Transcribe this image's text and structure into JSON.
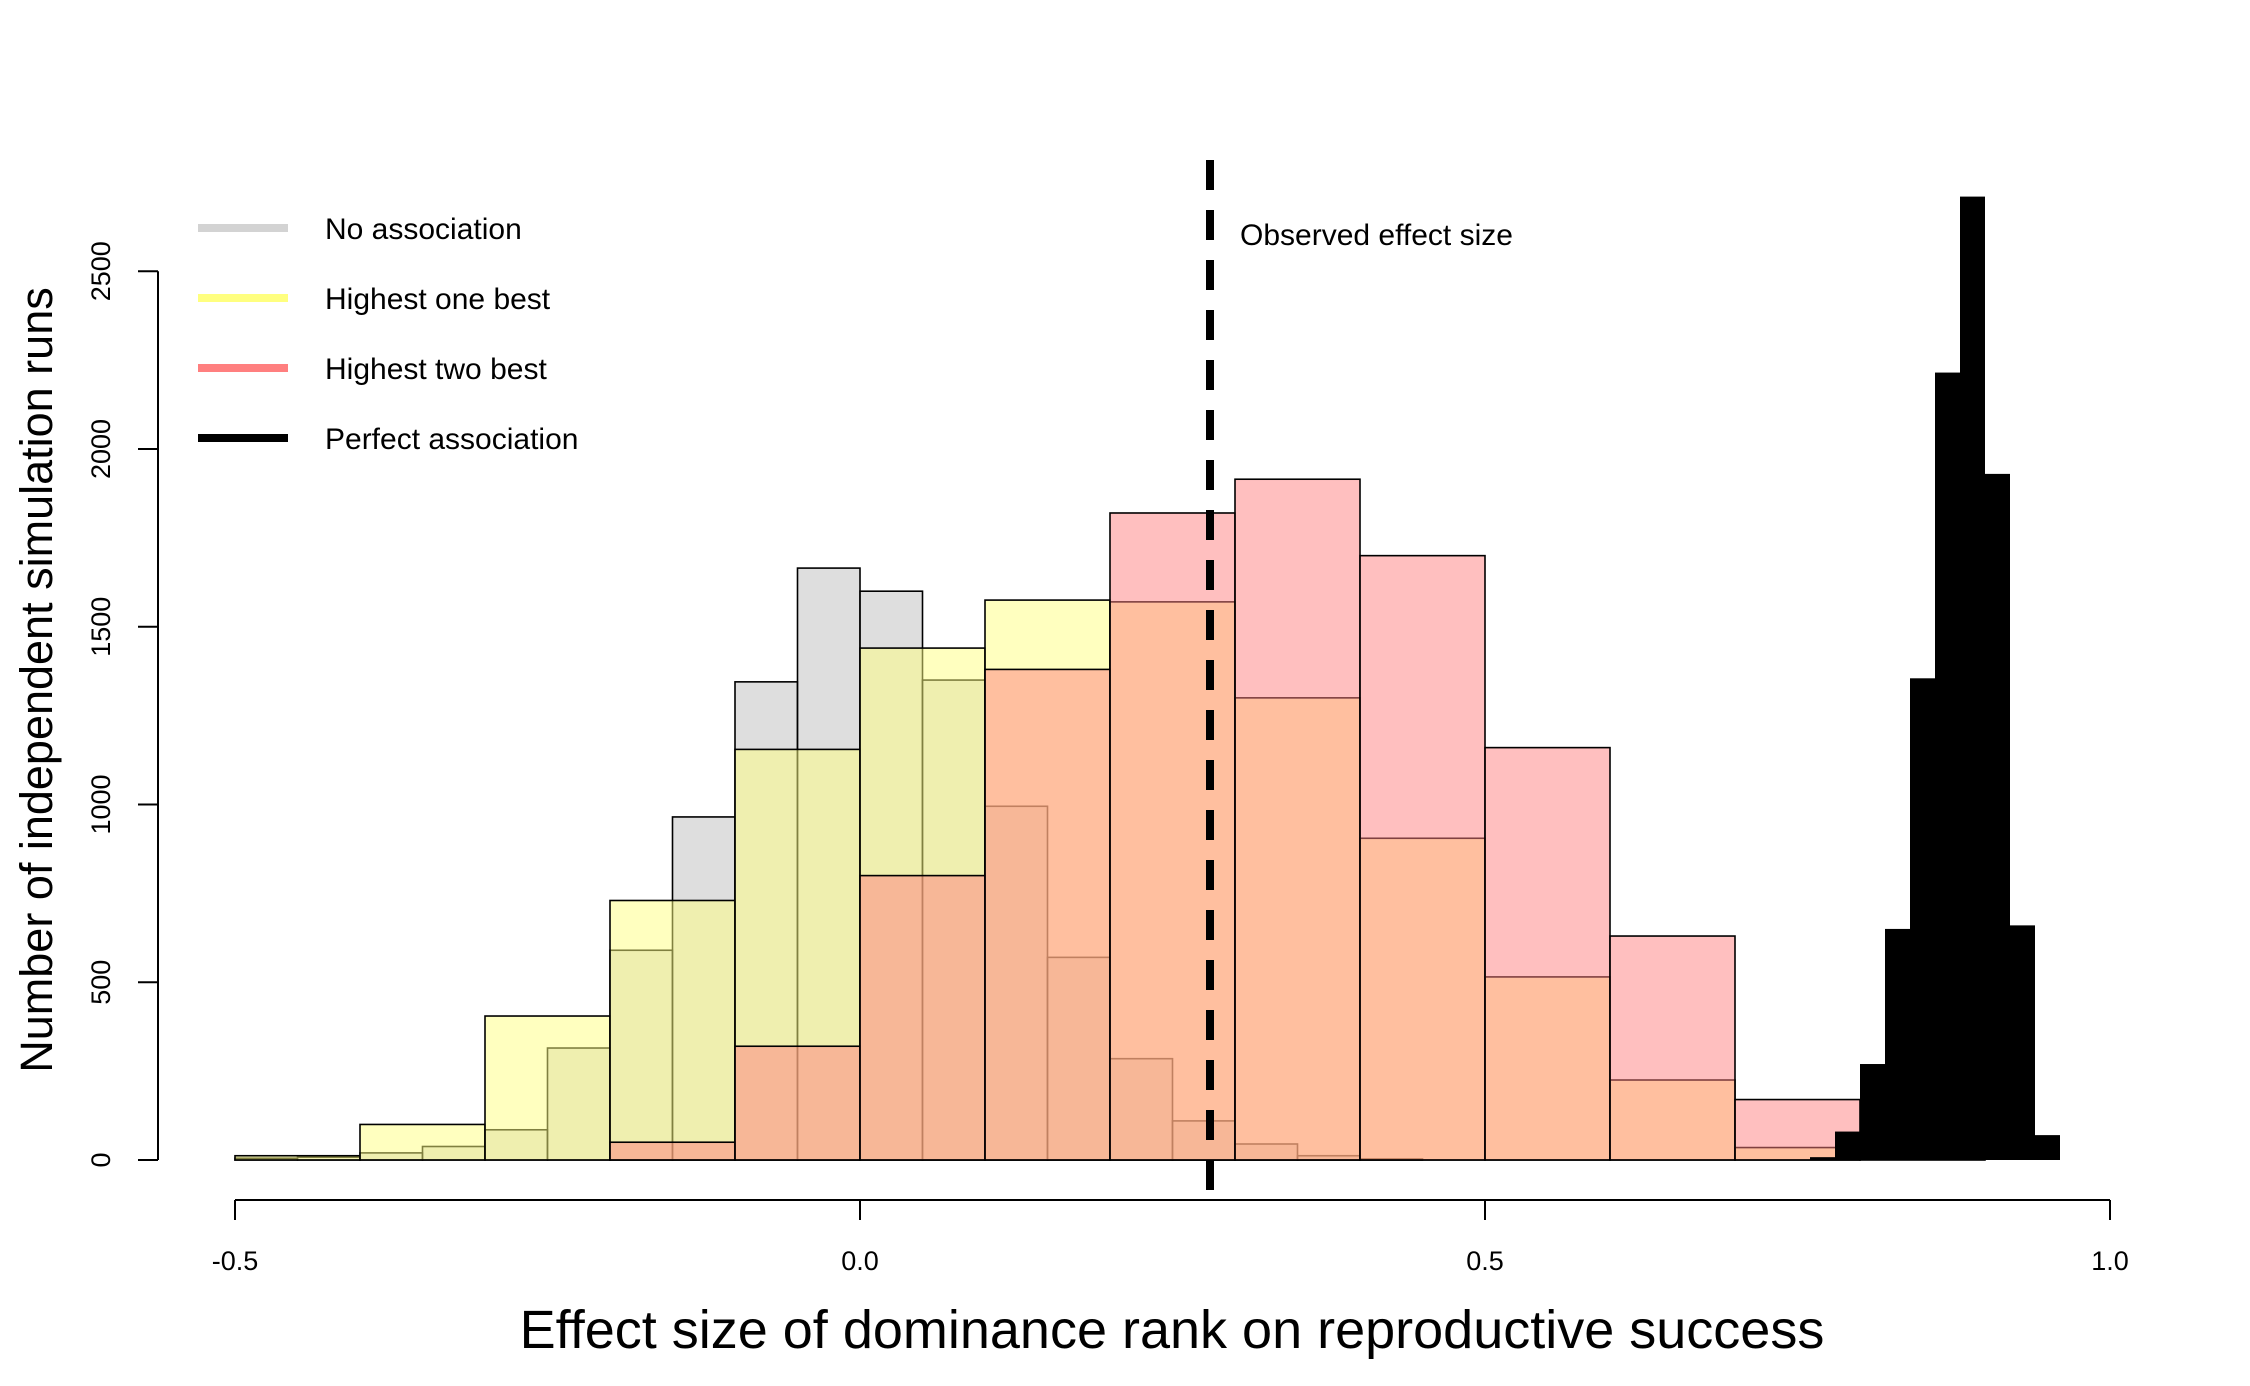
{
  "chart_data": {
    "type": "bar",
    "title": "",
    "xlabel": "Effect size of dominance rank on reproductive success",
    "ylabel": "Number of independent simulation runs",
    "xlim": [
      -0.5,
      1.0
    ],
    "ylim": [
      0,
      2700
    ],
    "x_ticks": [
      -0.5,
      0.0,
      0.5,
      1.0
    ],
    "x_tick_labels": [
      "-0.5",
      "0.0",
      "0.5",
      "1.0"
    ],
    "y_ticks": [
      0,
      500,
      1000,
      1500,
      2000,
      2500
    ],
    "y_tick_labels": [
      "0",
      "500",
      "1000",
      "1500",
      "2000",
      "2500"
    ],
    "legend_position": "top-left",
    "annotation": {
      "label": "Observed effect size",
      "x": 0.28
    },
    "series": [
      {
        "name": "No association",
        "color": "#bebebe",
        "bins": [
          {
            "x0": -0.5,
            "x1": -0.45,
            "count": 5
          },
          {
            "x0": -0.45,
            "x1": -0.4,
            "count": 8
          },
          {
            "x0": -0.4,
            "x1": -0.35,
            "count": 20
          },
          {
            "x0": -0.35,
            "x1": -0.3,
            "count": 38
          },
          {
            "x0": -0.3,
            "x1": -0.25,
            "count": 85
          },
          {
            "x0": -0.25,
            "x1": -0.2,
            "count": 315
          },
          {
            "x0": -0.2,
            "x1": -0.15,
            "count": 590
          },
          {
            "x0": -0.15,
            "x1": -0.1,
            "count": 965
          },
          {
            "x0": -0.1,
            "x1": -0.05,
            "count": 1345
          },
          {
            "x0": -0.05,
            "x1": 0.0,
            "count": 1665
          },
          {
            "x0": 0.0,
            "x1": 0.05,
            "count": 1600
          },
          {
            "x0": 0.05,
            "x1": 0.1,
            "count": 1350
          },
          {
            "x0": 0.1,
            "x1": 0.15,
            "count": 995
          },
          {
            "x0": 0.15,
            "x1": 0.2,
            "count": 570
          },
          {
            "x0": 0.2,
            "x1": 0.25,
            "count": 285
          },
          {
            "x0": 0.25,
            "x1": 0.3,
            "count": 110
          },
          {
            "x0": 0.3,
            "x1": 0.35,
            "count": 45
          },
          {
            "x0": 0.35,
            "x1": 0.4,
            "count": 12
          },
          {
            "x0": 0.4,
            "x1": 0.45,
            "count": 3
          }
        ]
      },
      {
        "name": "Highest one best",
        "color": "#ffff7f",
        "bins": [
          {
            "x0": -0.5,
            "x1": -0.4,
            "count": 12
          },
          {
            "x0": -0.4,
            "x1": -0.3,
            "count": 100
          },
          {
            "x0": -0.3,
            "x1": -0.2,
            "count": 405
          },
          {
            "x0": -0.2,
            "x1": -0.1,
            "count": 730
          },
          {
            "x0": -0.1,
            "x1": 0.0,
            "count": 1155
          },
          {
            "x0": 0.0,
            "x1": 0.1,
            "count": 1440
          },
          {
            "x0": 0.1,
            "x1": 0.2,
            "count": 1575
          },
          {
            "x0": 0.2,
            "x1": 0.3,
            "count": 1570
          },
          {
            "x0": 0.3,
            "x1": 0.4,
            "count": 1300
          },
          {
            "x0": 0.4,
            "x1": 0.5,
            "count": 905
          },
          {
            "x0": 0.5,
            "x1": 0.6,
            "count": 515
          },
          {
            "x0": 0.6,
            "x1": 0.7,
            "count": 225
          },
          {
            "x0": 0.7,
            "x1": 0.8,
            "count": 35
          }
        ]
      },
      {
        "name": "Highest two best",
        "color": "#ff7f7f",
        "bins": [
          {
            "x0": -0.2,
            "x1": -0.1,
            "count": 50
          },
          {
            "x0": -0.1,
            "x1": 0.0,
            "count": 320
          },
          {
            "x0": 0.0,
            "x1": 0.1,
            "count": 800
          },
          {
            "x0": 0.1,
            "x1": 0.2,
            "count": 1380
          },
          {
            "x0": 0.2,
            "x1": 0.3,
            "count": 1820
          },
          {
            "x0": 0.3,
            "x1": 0.4,
            "count": 1915
          },
          {
            "x0": 0.4,
            "x1": 0.5,
            "count": 1700
          },
          {
            "x0": 0.5,
            "x1": 0.6,
            "count": 1160
          },
          {
            "x0": 0.6,
            "x1": 0.7,
            "count": 630
          },
          {
            "x0": 0.7,
            "x1": 0.8,
            "count": 170
          },
          {
            "x0": 0.8,
            "x1": 0.9,
            "count": 15
          }
        ]
      },
      {
        "name": "Perfect association",
        "color": "#000000",
        "bins": [
          {
            "x0": 0.76,
            "x1": 0.78,
            "count": 8
          },
          {
            "x0": 0.78,
            "x1": 0.8,
            "count": 80
          },
          {
            "x0": 0.8,
            "x1": 0.82,
            "count": 270
          },
          {
            "x0": 0.82,
            "x1": 0.84,
            "count": 650
          },
          {
            "x0": 0.84,
            "x1": 0.86,
            "count": 1355
          },
          {
            "x0": 0.86,
            "x1": 0.88,
            "count": 2215
          },
          {
            "x0": 0.88,
            "x1": 0.9,
            "count": 2710
          },
          {
            "x0": 0.9,
            "x1": 0.92,
            "count": 1930
          },
          {
            "x0": 0.92,
            "x1": 0.94,
            "count": 660
          },
          {
            "x0": 0.94,
            "x1": 0.96,
            "count": 70
          }
        ]
      }
    ]
  }
}
